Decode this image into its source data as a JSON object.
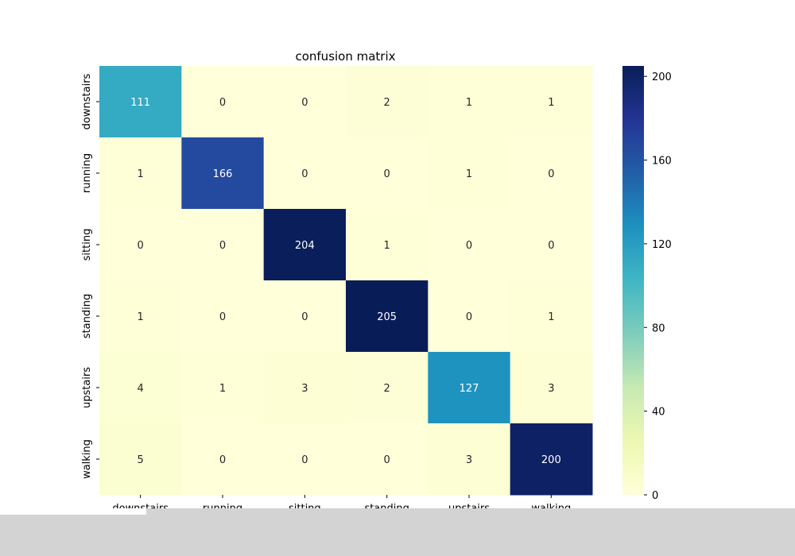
{
  "chart_data": {
    "type": "heatmap",
    "title": "confusion matrix",
    "xlabel": "",
    "ylabel": "",
    "x_categories": [
      "downstairs",
      "running",
      "sitting",
      "standing",
      "upstairs",
      "walking"
    ],
    "y_categories": [
      "downstairs",
      "running",
      "sitting",
      "standing",
      "upstairs",
      "walking"
    ],
    "values": [
      [
        111,
        0,
        0,
        2,
        1,
        1
      ],
      [
        1,
        166,
        0,
        0,
        1,
        0
      ],
      [
        0,
        0,
        204,
        1,
        0,
        0
      ],
      [
        1,
        0,
        0,
        205,
        0,
        1
      ],
      [
        4,
        1,
        3,
        2,
        127,
        3
      ],
      [
        5,
        0,
        0,
        0,
        3,
        200
      ]
    ],
    "colorbar": {
      "colormap": "YlGnBu",
      "range": [
        0,
        205
      ],
      "ticks": [
        0,
        40,
        80,
        120,
        160,
        200
      ]
    },
    "annotations": true
  }
}
